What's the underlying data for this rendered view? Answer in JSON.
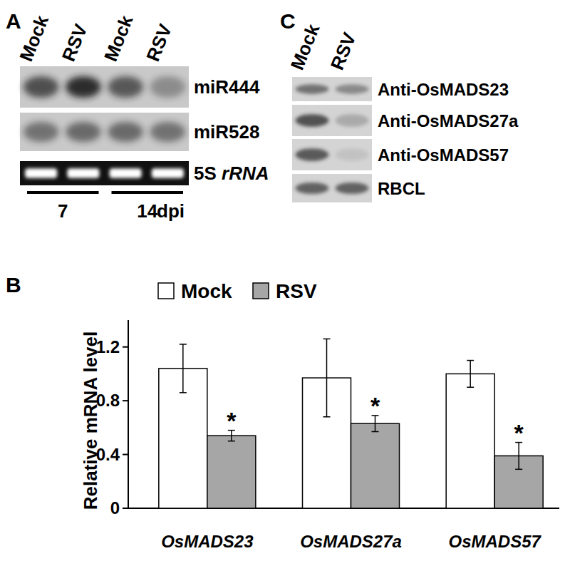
{
  "panel_a": {
    "panel_label": "A",
    "lanes": [
      "Mock",
      "RSV",
      "Mock",
      "RSV"
    ],
    "rows": [
      {
        "label": "miR444",
        "signal": [
          0.7,
          0.9,
          0.65,
          0.35
        ]
      },
      {
        "label": "miR528",
        "signal": [
          0.5,
          0.55,
          0.55,
          0.5
        ]
      },
      {
        "label": "5S rRNA",
        "signal": [
          1,
          1,
          1,
          1
        ]
      }
    ],
    "groups": [
      {
        "label": "7",
        "lanes": [
          0,
          1
        ]
      },
      {
        "label": "14",
        "lanes": [
          2,
          3
        ]
      }
    ],
    "unit": "dpi"
  },
  "panel_c": {
    "panel_label": "C",
    "lanes": [
      "Mock",
      "RSV"
    ],
    "rows": [
      {
        "label": "Anti-OsMADS23",
        "signal": [
          0.6,
          0.45
        ]
      },
      {
        "label": "Anti-OsMADS27a",
        "signal": [
          0.8,
          0.25
        ]
      },
      {
        "label": "Anti-OsMADS57",
        "signal": [
          0.75,
          0.1
        ]
      },
      {
        "label": "RBCL",
        "signal": [
          0.7,
          0.7
        ]
      }
    ]
  },
  "chart_data": {
    "panel_label": "B",
    "type": "bar",
    "y_label": "Relative mRNA level",
    "categories": [
      "OsMADS23",
      "OsMADS27a",
      "OsMADS57"
    ],
    "series": [
      {
        "name": "Mock",
        "color": "#ffffff",
        "values": [
          1.04,
          0.97,
          1.0
        ],
        "errors": [
          0.18,
          0.29,
          0.1
        ]
      },
      {
        "name": "RSV",
        "color": "#a6a6a6",
        "values": [
          0.54,
          0.63,
          0.39
        ],
        "errors": [
          0.04,
          0.06,
          0.1
        ],
        "annotations": [
          "*",
          "*",
          "*"
        ]
      }
    ],
    "ylim": [
      0,
      1.4
    ],
    "yticks": [
      0,
      0.4,
      0.8,
      1.2
    ],
    "legend": "top"
  }
}
